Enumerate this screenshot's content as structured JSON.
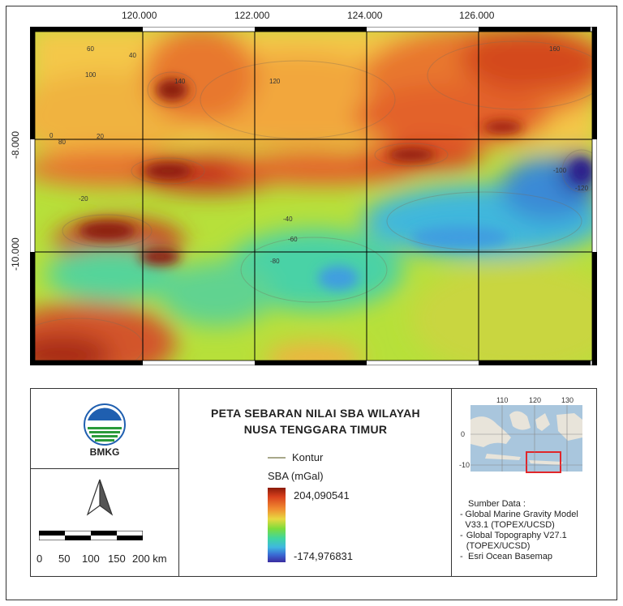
{
  "map": {
    "x_ticks": [
      "120.000",
      "122.000",
      "124.000",
      "126.000"
    ],
    "y_ticks": [
      "-8.000",
      "-10.000"
    ],
    "contour_labels": [
      "60",
      "40",
      "100",
      "140",
      "120",
      "160",
      "80",
      "20",
      "0",
      "-20",
      "-40",
      "-60",
      "-80",
      "-100",
      "-120"
    ]
  },
  "legend": {
    "title_line1": "PETA SEBARAN NILAI SBA WILAYAH",
    "title_line2": "NUSA TENGGARA TIMUR",
    "logo_text": "BMKG",
    "contour_label": "Kontur",
    "sba_label": "SBA (mGal)",
    "max_value": "204,090541",
    "min_value": "-174,976831",
    "scale_labels": [
      "0",
      "50",
      "100",
      "150",
      "200 km"
    ],
    "inset_x_ticks": [
      "110",
      "120",
      "130"
    ],
    "inset_y_ticks": [
      "0",
      "-10"
    ],
    "sources_title": "Sumber Data :",
    "sources": [
      "Global Marine Gravity Model V33.1 (TOPEX/UCSD)",
      "Global Topography V27.1 (TOPEX/UCSD)",
      "Esri Ocean Basemap"
    ],
    "colors": {
      "high": "#8b1a0a",
      "mid": "#7ddc3c",
      "low": "#3a2ca0",
      "contour": "#a8a88a"
    }
  }
}
